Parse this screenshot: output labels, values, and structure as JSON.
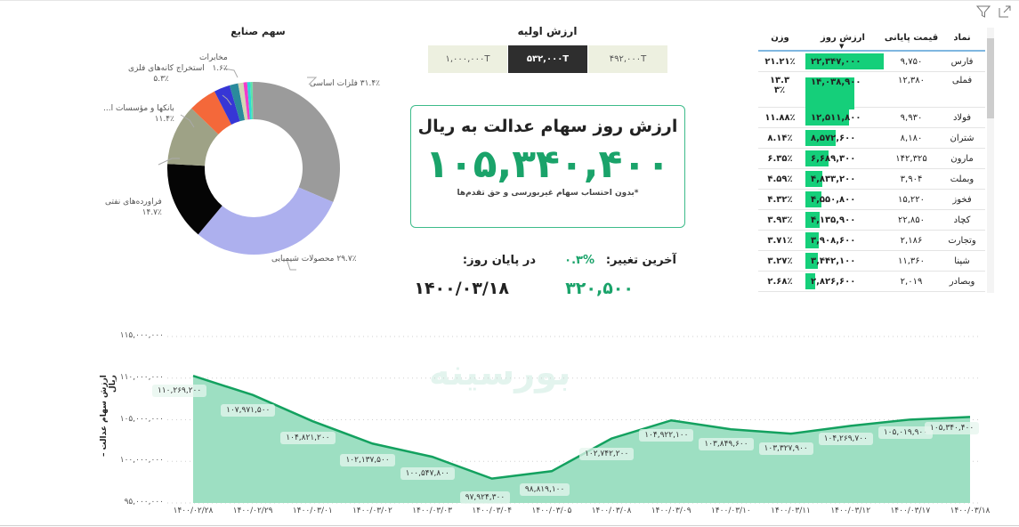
{
  "toolbar": {
    "filter_icon": "filter-icon",
    "focus_icon": "focus-mode-icon"
  },
  "industry_share": {
    "title": "سهم صنایع",
    "slices": [
      {
        "label": "فلزات اساسی",
        "pct": "۳۱.۴٪",
        "value": 31.4,
        "color": "#9b9b9b"
      },
      {
        "label": "محصولات شیمیایی",
        "pct": "۲۹.۷٪",
        "value": 29.7,
        "color": "#adb0ee"
      },
      {
        "label": "فراورده‌های نفتی",
        "pct": "۱۴.۷٪",
        "value": 14.7,
        "color": "#050505"
      },
      {
        "label": "بانکها و مؤسسات ا...",
        "pct": "۱۱.۴٪",
        "value": 11.4,
        "color": "#9ea286"
      },
      {
        "label": "استخراج کانه‌های فلزی",
        "pct": "۵.۳٪",
        "value": 5.3,
        "color": "#f4683a"
      },
      {
        "label": "",
        "pct": "",
        "value": 3.0,
        "color": "#3636d6"
      },
      {
        "label": "مخابرات",
        "pct": "۱.۶٪",
        "value": 1.6,
        "color": "#2a8a9c"
      },
      {
        "label": "",
        "pct": "",
        "value": 1.0,
        "color": "#d3d6b3"
      },
      {
        "label": "",
        "pct": "",
        "value": 0.7,
        "color": "#f03ccc"
      },
      {
        "label": "",
        "pct": "",
        "value": 0.6,
        "color": "#2ed8d8"
      },
      {
        "label": "",
        "pct": "",
        "value": 0.4,
        "color": "#5de3a6"
      },
      {
        "label": "",
        "pct": "",
        "value": 0.2,
        "color": "#a0a0a0"
      }
    ]
  },
  "initial_value": {
    "title": "ارزش اولیه",
    "options": [
      "۱,۰۰۰,۰۰۰T",
      "۵۳۲,۰۰۰T",
      "۴۹۲,۰۰۰T"
    ],
    "selected_index": 1
  },
  "kpi": {
    "title": "ارزش روز سهام عدالت به ریال",
    "value": "۱۰۵,۳۴۰,۴۰۰",
    "note": "*بدون احتساب سهام غیربورسی و حق تقدم‌ها"
  },
  "change": {
    "last_change_label": "آخرین تغییر:",
    "last_change_pct": "۰.۳%",
    "end_of_day_label": "در پایان روز:",
    "change_value": "۳۲۰,۵۰۰",
    "date": "۱۴۰۰/۰۳/۱۸"
  },
  "table": {
    "headers": {
      "symbol": "نماد",
      "close_price": "قیمت پایانی",
      "day_value": "ارزش روز",
      "weight": "وزن"
    },
    "sort_column": "day_value",
    "rows": [
      {
        "symbol": "فارس",
        "price": "۹,۷۵۰",
        "value": "۲۲,۳۴۷,۰۰۰",
        "weight": "۲۱.۲۱٪",
        "bar": 1.0
      },
      {
        "symbol": "فملی",
        "price": "۱۲,۳۸۰",
        "value": "۱۴,۰۳۸,۹۰۰",
        "weight": "۱۳.۳۳٪",
        "bar": 0.628
      },
      {
        "symbol": "فولاد",
        "price": "۹,۹۳۰",
        "value": "۱۲,۵۱۱,۸۰۰",
        "weight": "۱۱.۸۸٪",
        "bar": 0.56
      },
      {
        "symbol": "شتران",
        "price": "۸,۱۸۰",
        "value": "۸,۵۷۲,۶۰۰",
        "weight": "۸.۱۴٪",
        "bar": 0.384
      },
      {
        "symbol": "مارون",
        "price": "۱۴۲,۳۲۵",
        "value": "۶,۶۸۹,۳۰۰",
        "weight": "۶.۳۵٪",
        "bar": 0.3
      },
      {
        "symbol": "وبملت",
        "price": "۳,۹۰۴",
        "value": "۴,۸۳۳,۲۰۰",
        "weight": "۴.۵۹٪",
        "bar": 0.216
      },
      {
        "symbol": "فخوز",
        "price": "۱۵,۲۲۰",
        "value": "۴,۵۵۰,۸۰۰",
        "weight": "۴.۳۲٪",
        "bar": 0.204
      },
      {
        "symbol": "کچاد",
        "price": "۲۲,۸۵۰",
        "value": "۴,۱۳۵,۹۰۰",
        "weight": "۳.۹۳٪",
        "bar": 0.185
      },
      {
        "symbol": "وتجارت",
        "price": "۲,۱۸۶",
        "value": "۳,۹۰۸,۶۰۰",
        "weight": "۳.۷۱٪",
        "bar": 0.175
      },
      {
        "symbol": "شپنا",
        "price": "۱۱,۳۶۰",
        "value": "۳,۴۴۲,۱۰۰",
        "weight": "۳.۲۷٪",
        "bar": 0.154
      },
      {
        "symbol": "وبصادر",
        "price": "۲,۰۱۹",
        "value": "۲,۸۲۶,۶۰۰",
        "weight": "۲.۶۸٪",
        "bar": 0.126
      }
    ]
  },
  "watermark": "بورسینه",
  "chart_data": {
    "type": "area",
    "title": "",
    "ylabel": "ارزش سهام عدالت – ریال",
    "xlabel": "",
    "ylim": [
      95000000,
      115000000
    ],
    "yticks": [
      "۹۵,۰۰۰,۰۰۰",
      "۱۰۰,۰۰۰,۰۰۰",
      "۱۰۵,۰۰۰,۰۰۰",
      "۱۱۰,۰۰۰,۰۰۰",
      "۱۱۵,۰۰۰,۰۰۰"
    ],
    "categories": [
      "۱۴۰۰/۰۲/۲۸",
      "۱۴۰۰/۰۲/۲۹",
      "۱۴۰۰/۰۳/۰۱",
      "۱۴۰۰/۰۳/۰۲",
      "۱۴۰۰/۰۳/۰۳",
      "۱۴۰۰/۰۳/۰۴",
      "۱۴۰۰/۰۳/۰۵",
      "۱۴۰۰/۰۳/۰۸",
      "۱۴۰۰/۰۳/۰۹",
      "۱۴۰۰/۰۳/۱۰",
      "۱۴۰۰/۰۳/۱۱",
      "۱۴۰۰/۰۳/۱۲",
      "۱۴۰۰/۰۳/۱۷",
      "۱۴۰۰/۰۳/۱۸"
    ],
    "values": [
      110269200,
      107971500,
      104821200,
      102137500,
      100547800,
      97924300,
      98819100,
      102742200,
      104922100,
      103849600,
      103327900,
      104269700,
      105019900,
      105340400
    ],
    "labels": [
      "۱۱۰,۲۶۹,۲۰۰",
      "۱۰۷,۹۷۱,۵۰۰",
      "۱۰۴,۸۲۱,۲۰۰",
      "۱۰۲,۱۳۷,۵۰۰",
      "۱۰۰,۵۴۷,۸۰۰",
      "۹۷,۹۲۴,۳۰۰",
      "۹۸,۸۱۹,۱۰۰",
      "۱۰۲,۷۴۲,۲۰۰",
      "۱۰۴,۹۲۲,۱۰۰",
      "۱۰۳,۸۴۹,۶۰۰",
      "۱۰۳,۳۲۷,۹۰۰",
      "۱۰۴,۲۶۹,۷۰۰",
      "۱۰۵,۰۱۹,۹۰۰",
      "۱۰۵,۳۴۰,۴۰۰"
    ],
    "line_color": "#13a15f",
    "fill_color": "#9ddfc2",
    "grid": "dotted-horizontal"
  }
}
